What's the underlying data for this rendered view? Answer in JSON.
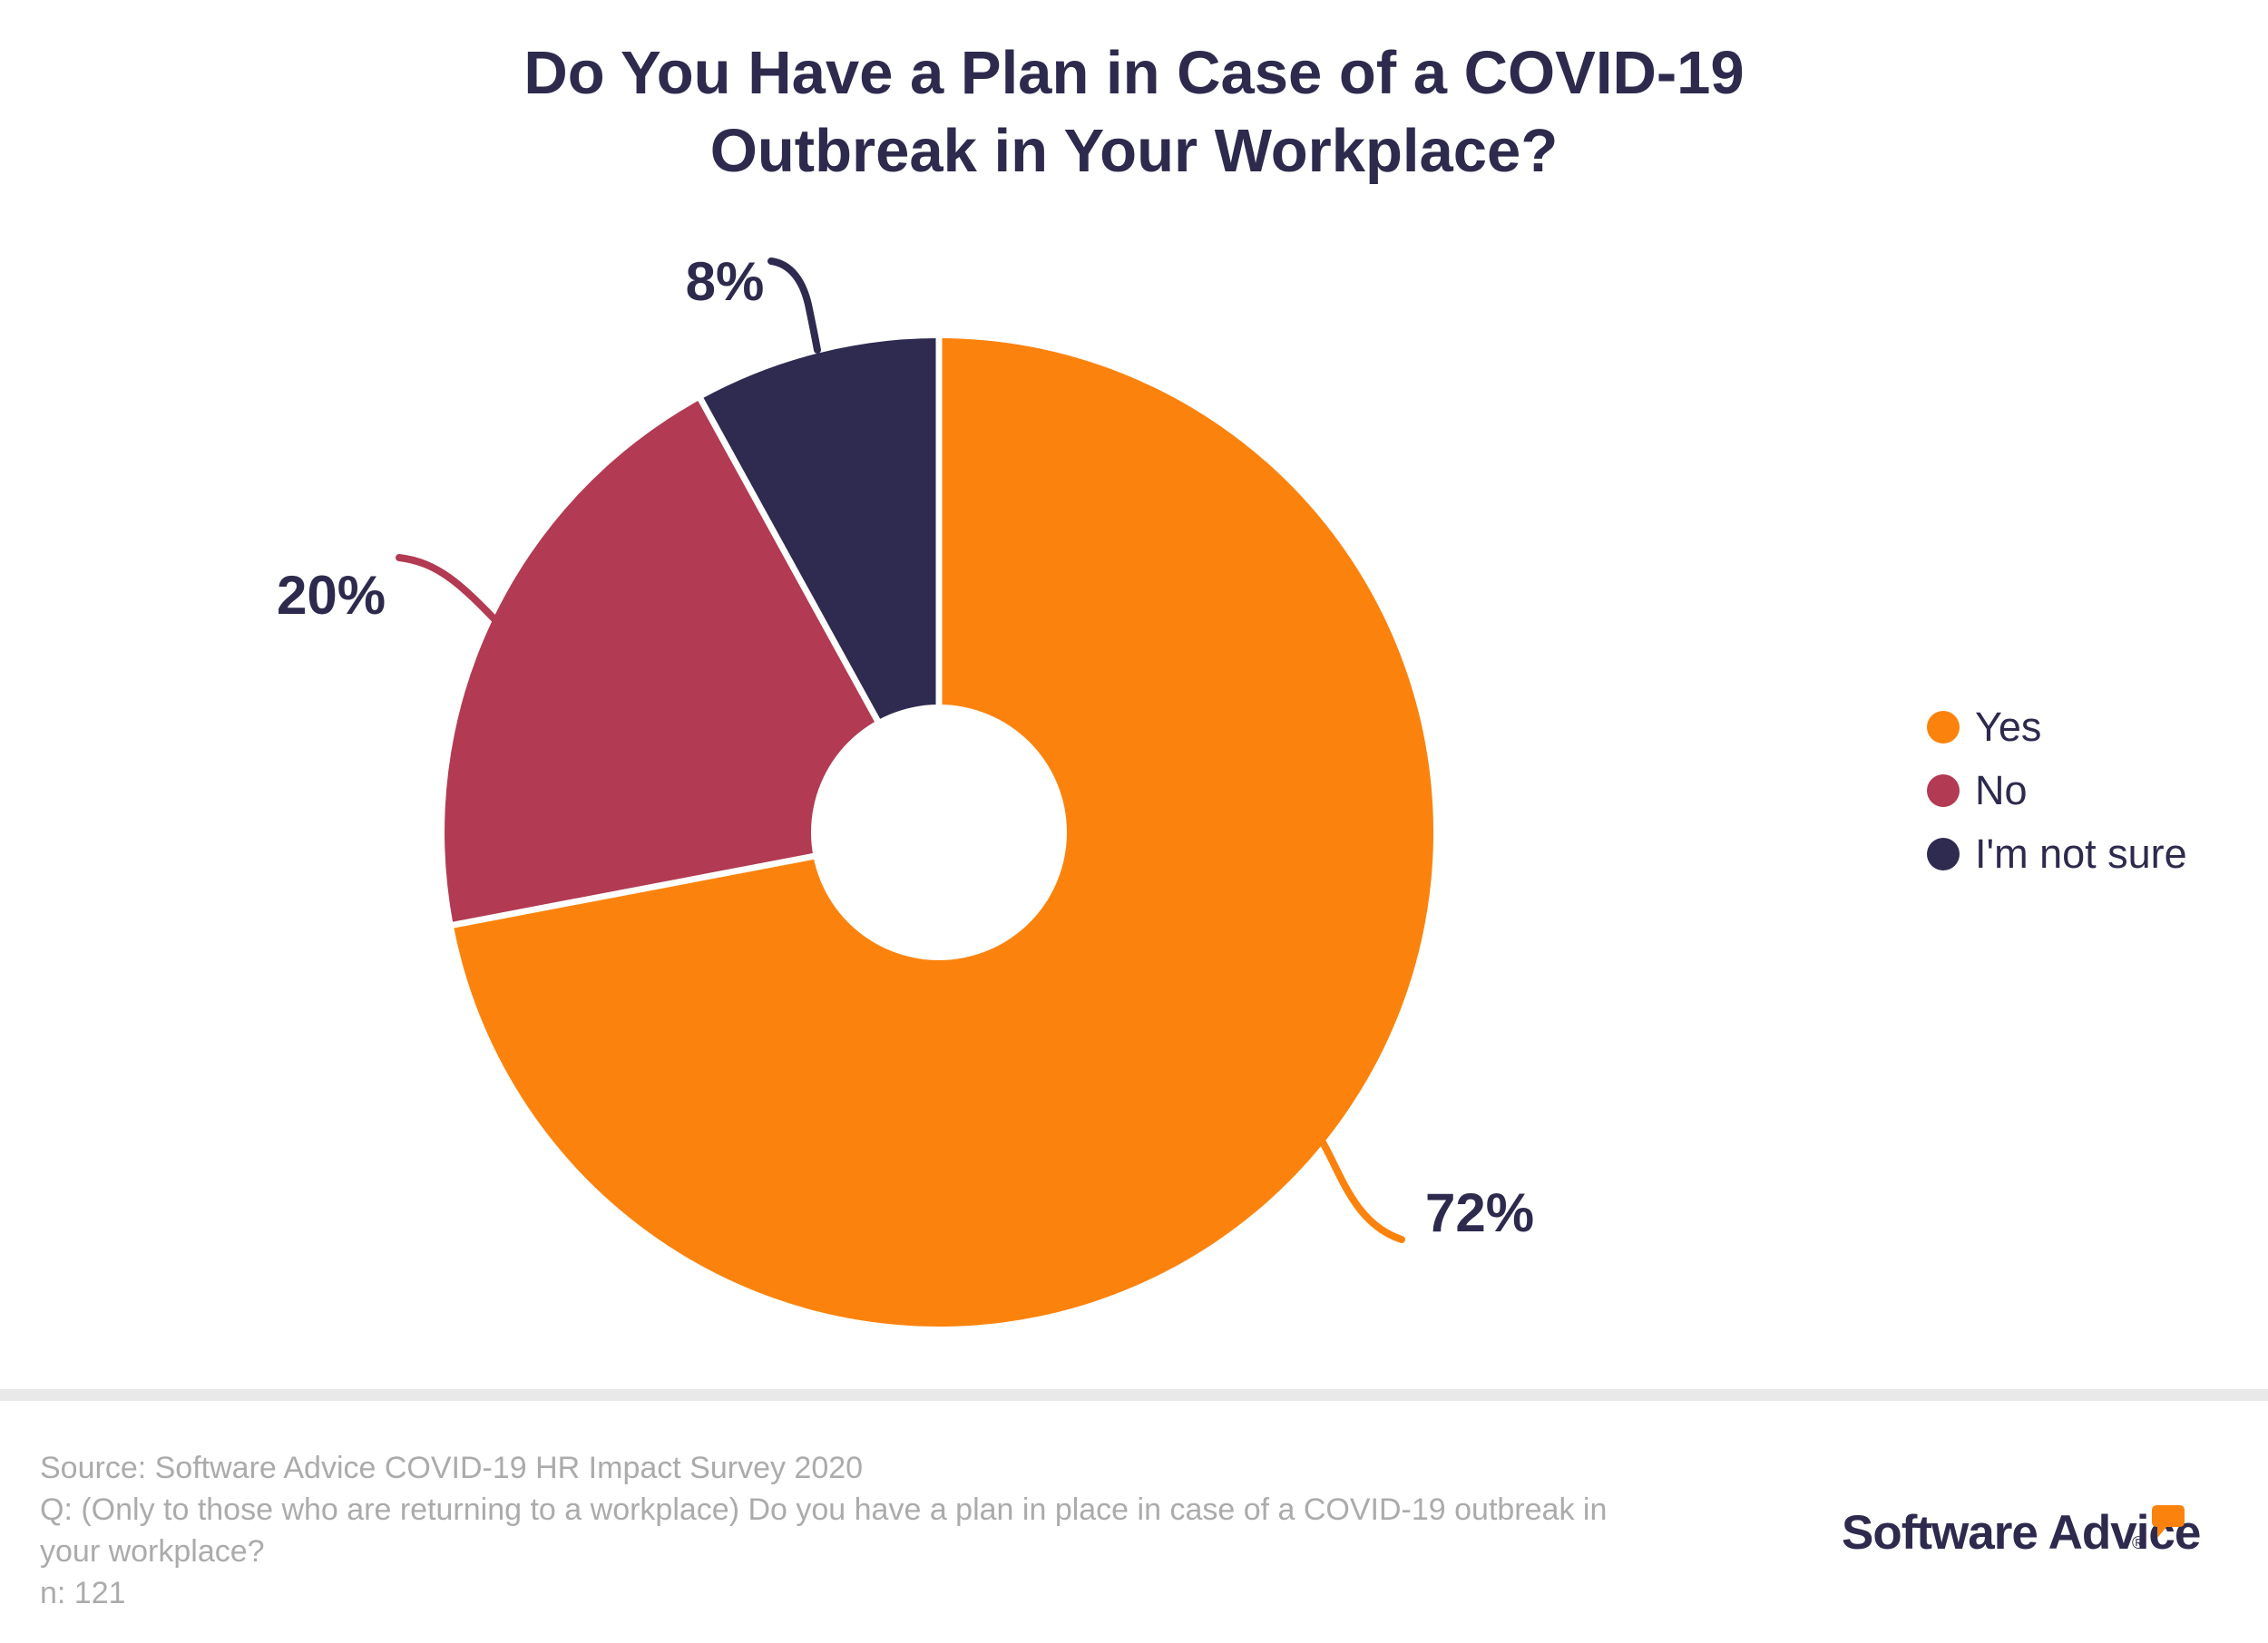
{
  "title": {
    "line1": "Do You Have a Plan in Case of a COVID-19",
    "line2": "Outbreak in Your Workplace?"
  },
  "chart_data": {
    "type": "pie",
    "subtype": "donut",
    "title": "Do You Have a Plan in Case of a COVID-19 Outbreak in Your Workplace?",
    "categories": [
      "Yes",
      "No",
      "I'm not sure"
    ],
    "values": [
      72,
      20,
      8
    ],
    "unit": "%",
    "labels": [
      "72%",
      "20%",
      "8%"
    ],
    "colors": [
      "#FB830D",
      "#B23A52",
      "#2E2A50"
    ],
    "label_color": "#2D2A4E",
    "start_angle_deg": 0,
    "direction": "clockwise",
    "legend_position": "right",
    "gap_color": "#FFFFFF"
  },
  "footer": {
    "source": "Source: Software Advice COVID-19 HR Impact Survey 2020",
    "question": "Q: (Only to those who are returning to a workplace) Do you have a plan in place in case of a COVID-19 outbreak in your workplace?",
    "sample": "n: 121"
  },
  "logo": {
    "text": "Software Advice",
    "registered": "®",
    "accent_color": "#FB830D",
    "text_color": "#2D2A4E"
  },
  "colors": {
    "background": "#FFFFFF",
    "title_text": "#2D2A4E",
    "footer_text": "#ABABAB",
    "divider": "#E9E9E9"
  }
}
